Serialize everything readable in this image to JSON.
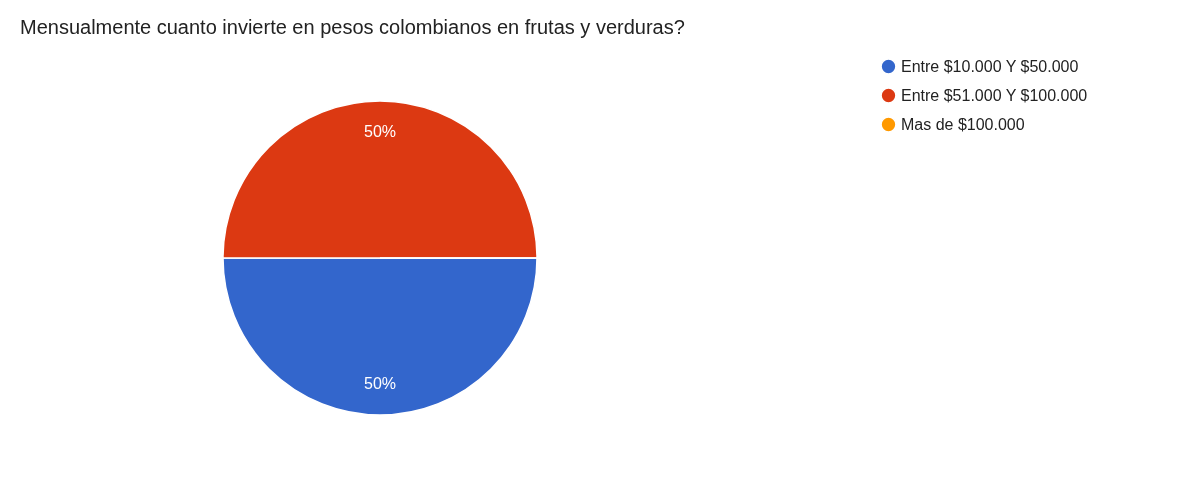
{
  "chart_data": {
    "type": "pie",
    "title": "Mensualmente cuanto invierte en pesos colombianos en frutas y verduras?",
    "categories": [
      "Entre $10.000 Y $50.000",
      "Entre $51.000 Y $100.000",
      "Mas de $100.000"
    ],
    "values": [
      50,
      50,
      0
    ],
    "colors": [
      "#3366cc",
      "#dc3912",
      "#ff9900"
    ],
    "value_labels": [
      "50%",
      "50%",
      null
    ],
    "legend": "right"
  }
}
